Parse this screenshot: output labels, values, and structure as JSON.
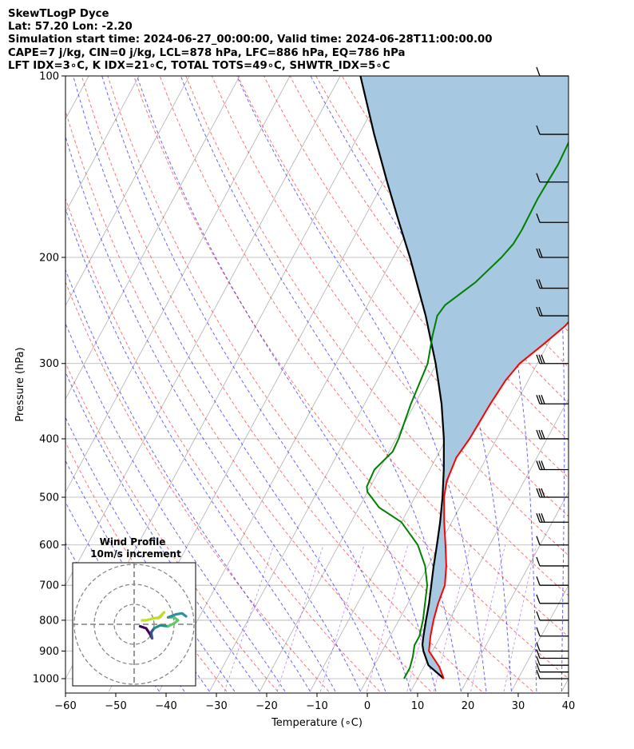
{
  "header": {
    "line1": "SkewTLogP Dyce",
    "line2": "Lat: 57.20   Lon: -2.20",
    "line3": "Simulation start time: 2024-06-27_00:00:00, Valid time: 2024-06-28T11:00:00.00",
    "line4": "CAPE=7 j/kg, CIN=0 j/kg, LCL=878 hPa, LFC=886 hPa, EQ=786 hPa",
    "line5": "LFT IDX=3∘C, K IDX=21∘C, TOTAL TOTS=49∘C, SHWTR_IDX=5∘C"
  },
  "colors": {
    "temperature": "#ff0000",
    "dewpoint": "#008000",
    "parcel": "#000000",
    "cape_fill": "#a6c8e0",
    "dry_adiabat": "#ff0000",
    "moist_adiabat": "#0000ff",
    "mixing_ratio": "#7a00ff",
    "isotherm": "#808080",
    "grid": "#b0b0b0"
  },
  "chart_data": [
    {
      "type": "line",
      "name": "skew-t-log-p",
      "xlabel": "Temperature (∘C)",
      "ylabel": "Pressure (hPa)",
      "xlim": [
        -60,
        40
      ],
      "ylim": [
        1050,
        100
      ],
      "x_ticks": [
        "−60",
        "−50",
        "−40",
        "−30",
        "−20",
        "−10",
        "0",
        "10",
        "20",
        "30",
        "40"
      ],
      "x_tick_values": [
        -60,
        -50,
        -40,
        -30,
        -20,
        -10,
        0,
        10,
        20,
        30,
        40
      ],
      "y_ticks": [
        "100",
        "200",
        "300",
        "400",
        "500",
        "600",
        "700",
        "800",
        "900",
        "1000"
      ],
      "y_tick_values": [
        100,
        200,
        300,
        400,
        500,
        600,
        700,
        800,
        900,
        1000
      ],
      "series": [
        {
          "name": "Temperature",
          "points": [
            [
              1000,
              15.2
            ],
            [
              955,
              13
            ],
            [
              900,
              9.3
            ],
            [
              850,
              8
            ],
            [
              800,
              6.9
            ],
            [
              750,
              6
            ],
            [
              700,
              5.4
            ],
            [
              650,
              3.6
            ],
            [
              600,
              1.2
            ],
            [
              550,
              -1.5
            ],
            [
              500,
              -4.2
            ],
            [
              470,
              -5.4
            ],
            [
              430,
              -6
            ],
            [
              400,
              -5.4
            ],
            [
              350,
              -5
            ],
            [
              320,
              -4.5
            ],
            [
              300,
              -3.5
            ],
            [
              280,
              -1
            ],
            [
              260,
              1.5
            ],
            [
              240,
              3
            ],
            [
              220,
              4.5
            ],
            [
              200,
              5.7
            ],
            [
              180,
              6.8
            ],
            [
              160,
              7.5
            ],
            [
              150,
              8
            ],
            [
              140,
              11
            ],
            [
              130,
              11.2
            ],
            [
              120,
              11.2
            ],
            [
              115,
              12.3
            ],
            [
              110,
              13
            ],
            [
              105,
              13
            ],
            [
              100,
              12.5
            ]
          ]
        },
        {
          "name": "Dewpoint",
          "points": [
            [
              1000,
              7.3
            ],
            [
              960,
              7.3
            ],
            [
              920,
              6.7
            ],
            [
              880,
              5.8
            ],
            [
              850,
              5.8
            ],
            [
              800,
              4.8
            ],
            [
              750,
              3.4
            ],
            [
              700,
              1.9
            ],
            [
              650,
              -0.6
            ],
            [
              600,
              -4.3
            ],
            [
              550,
              -10
            ],
            [
              520,
              -16
            ],
            [
              490,
              -20
            ],
            [
              480,
              -20.7
            ],
            [
              450,
              -21
            ],
            [
              420,
              -19.3
            ],
            [
              400,
              -19.5
            ],
            [
              350,
              -20.8
            ],
            [
              300,
              -21.8
            ],
            [
              270,
              -23.8
            ],
            [
              250,
              -25
            ],
            [
              240,
              -24.6
            ],
            [
              220,
              -21
            ],
            [
              200,
              -18.5
            ],
            [
              190,
              -17.6
            ],
            [
              180,
              -17.4
            ],
            [
              160,
              -17.6
            ],
            [
              140,
              -17.2
            ],
            [
              120,
              -17.7
            ],
            [
              105,
              -18.8
            ],
            [
              100,
              -19.3
            ]
          ]
        },
        {
          "name": "Parcel",
          "points": [
            [
              1000,
              15.2
            ],
            [
              950,
              10.7
            ],
            [
              900,
              8.2
            ],
            [
              878,
              7.3
            ],
            [
              850,
              6.6
            ],
            [
              800,
              5.4
            ],
            [
              750,
              4.2
            ],
            [
              700,
              2.7
            ],
            [
              650,
              1.1
            ],
            [
              600,
              -0.5
            ],
            [
              550,
              -2.3
            ],
            [
              500,
              -4.5
            ],
            [
              450,
              -7.2
            ],
            [
              400,
              -10.5
            ],
            [
              350,
              -14.7
            ],
            [
              300,
              -20.2
            ],
            [
              250,
              -27.3
            ],
            [
              200,
              -36.7
            ],
            [
              175,
              -42.6
            ],
            [
              150,
              -49.3
            ],
            [
              125,
              -57
            ],
            [
              100,
              -66
            ]
          ]
        }
      ],
      "wind_barbs": {
        "levels_hpa": [
          1000,
          975,
          950,
          925,
          900,
          850,
          800,
          750,
          700,
          650,
          600,
          550,
          500,
          450,
          400,
          350,
          300,
          250,
          225,
          200,
          175,
          150,
          125,
          100
        ]
      }
    },
    {
      "type": "line",
      "name": "wind-profile-hodograph",
      "title_line1": "Wind Profile",
      "title_line2": "10m/s increment",
      "ring_spacing": "10 m/s",
      "segments": [
        {
          "color": "#440154",
          "points": [
            [
              3,
              -1
            ],
            [
              6,
              -2
            ],
            [
              8,
              -5
            ],
            [
              9,
              -7
            ]
          ]
        },
        {
          "color": "#3b528b",
          "points": [
            [
              9,
              -7
            ],
            [
              8.5,
              -4
            ],
            [
              10,
              -2
            ]
          ]
        },
        {
          "color": "#21918c",
          "points": [
            [
              10,
              -2
            ],
            [
              13,
              -0.5
            ],
            [
              17,
              -1
            ]
          ]
        },
        {
          "color": "#5ec962",
          "points": [
            [
              17,
              -1
            ],
            [
              20,
              0.5
            ],
            [
              22,
              2
            ],
            [
              20,
              3.5
            ],
            [
              17,
              3.5
            ]
          ]
        },
        {
          "color": "#2e8fa0",
          "points": [
            [
              17,
              3.5
            ],
            [
              21,
              5
            ],
            [
              24,
              5.5
            ],
            [
              26,
              4
            ]
          ]
        },
        {
          "color": "#bddf26",
          "points": [
            [
              12,
              3
            ],
            [
              14,
              5
            ],
            [
              15,
              6
            ],
            [
              13,
              3.5
            ],
            [
              10,
              3
            ],
            [
              6,
              2
            ],
            [
              4,
              2
            ]
          ]
        }
      ]
    }
  ]
}
